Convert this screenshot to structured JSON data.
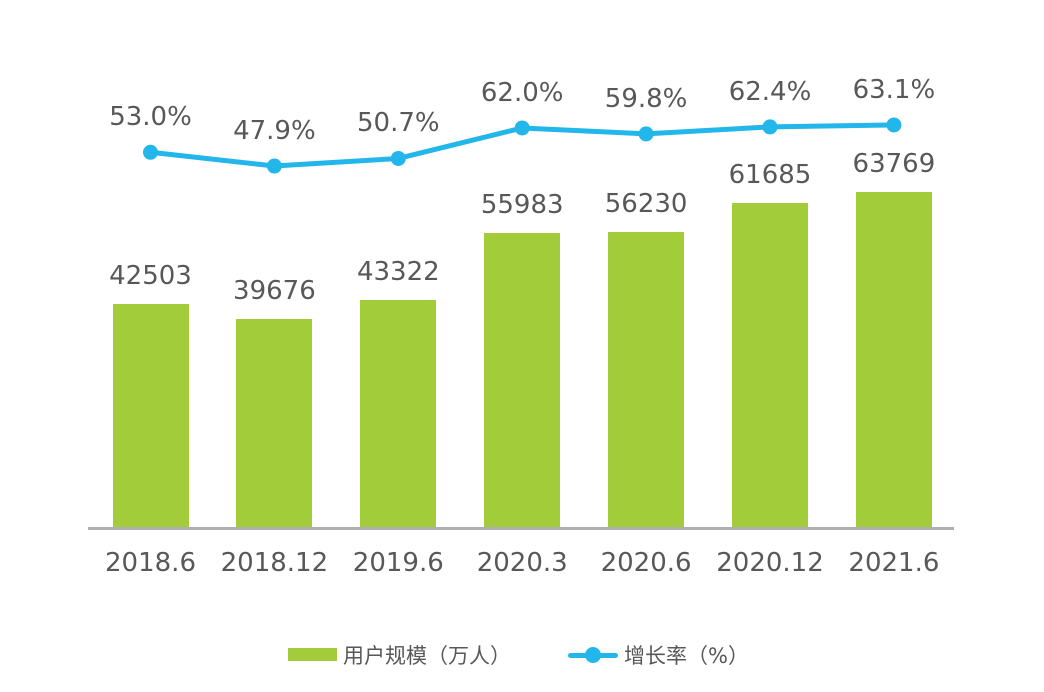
{
  "chart_data": {
    "type": "bar",
    "subtype": "bar-with-line-overlay",
    "title": "",
    "categories": [
      "2018.6",
      "2018.12",
      "2019.6",
      "2020.3",
      "2020.6",
      "2020.12",
      "2021.6"
    ],
    "series": [
      {
        "name": "用户规模（万人）",
        "type": "bar",
        "values": [
          42503,
          39676,
          43322,
          55983,
          56230,
          61685,
          63769
        ],
        "value_labels": [
          "42503",
          "39676",
          "43322",
          "55983",
          "56230",
          "61685",
          "63769"
        ],
        "color": "#a3cc3a"
      },
      {
        "name": "增长率（%）",
        "type": "line",
        "values": [
          53.0,
          47.9,
          50.7,
          62.0,
          59.8,
          62.4,
          63.1
        ],
        "value_labels": [
          "53.0%",
          "47.9%",
          "50.7%",
          "62.0%",
          "59.8%",
          "62.4%",
          "63.1%"
        ],
        "color": "#23b6ea"
      }
    ],
    "xlabel": "",
    "ylabel": "",
    "grid": false,
    "legend_position": "bottom",
    "axis_color": "#b0afaf",
    "text_color": "#595757",
    "background_color": "#ffffff"
  },
  "legend": {
    "bar_label": "用户规模（万人）",
    "line_label": "增长率（%）"
  }
}
